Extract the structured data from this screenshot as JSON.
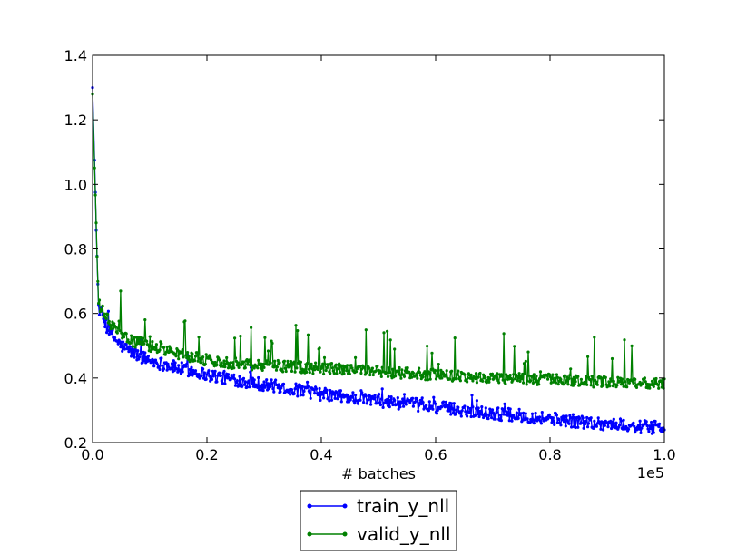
{
  "chart_data": {
    "type": "line",
    "xlabel": "# batches",
    "x_offset_text": "1e5",
    "x_scale": 100000,
    "xlim": [
      0.0,
      1.0
    ],
    "ylim": [
      0.2,
      1.4
    ],
    "xticks": [
      "0.0",
      "0.2",
      "0.4",
      "0.6",
      "0.8",
      "1.0"
    ],
    "yticks": [
      "0.2",
      "0.4",
      "0.6",
      "0.8",
      "1.0",
      "1.2",
      "1.4"
    ],
    "grid": false,
    "legend_placement": "below",
    "series": [
      {
        "name": "train_y_nll",
        "color": "#0000ff",
        "marker": "dot",
        "x": [
          0.0,
          0.01,
          0.02,
          0.03,
          0.04,
          0.05,
          0.06,
          0.08,
          0.1,
          0.12,
          0.15,
          0.18,
          0.2,
          0.25,
          0.3,
          0.35,
          0.4,
          0.45,
          0.5,
          0.55,
          0.6,
          0.65,
          0.7,
          0.75,
          0.8,
          0.85,
          0.9,
          0.95,
          1.0
        ],
        "y": [
          1.3,
          0.62,
          0.58,
          0.54,
          0.52,
          0.5,
          0.49,
          0.47,
          0.455,
          0.445,
          0.43,
          0.42,
          0.41,
          0.395,
          0.38,
          0.365,
          0.35,
          0.34,
          0.33,
          0.32,
          0.31,
          0.3,
          0.29,
          0.283,
          0.275,
          0.265,
          0.258,
          0.25,
          0.245
        ]
      },
      {
        "name": "valid_y_nll",
        "color": "#008000",
        "marker": "dot",
        "x": [
          0.0,
          0.01,
          0.02,
          0.03,
          0.04,
          0.05,
          0.06,
          0.08,
          0.1,
          0.12,
          0.15,
          0.18,
          0.2,
          0.25,
          0.3,
          0.35,
          0.4,
          0.45,
          0.5,
          0.55,
          0.6,
          0.65,
          0.7,
          0.75,
          0.8,
          0.85,
          0.9,
          0.95,
          1.0
        ],
        "y": [
          1.28,
          0.63,
          0.6,
          0.57,
          0.55,
          0.53,
          0.52,
          0.51,
          0.5,
          0.49,
          0.475,
          0.465,
          0.455,
          0.445,
          0.44,
          0.435,
          0.43,
          0.425,
          0.42,
          0.415,
          0.41,
          0.405,
          0.4,
          0.398,
          0.395,
          0.39,
          0.387,
          0.385,
          0.38
        ]
      }
    ]
  }
}
